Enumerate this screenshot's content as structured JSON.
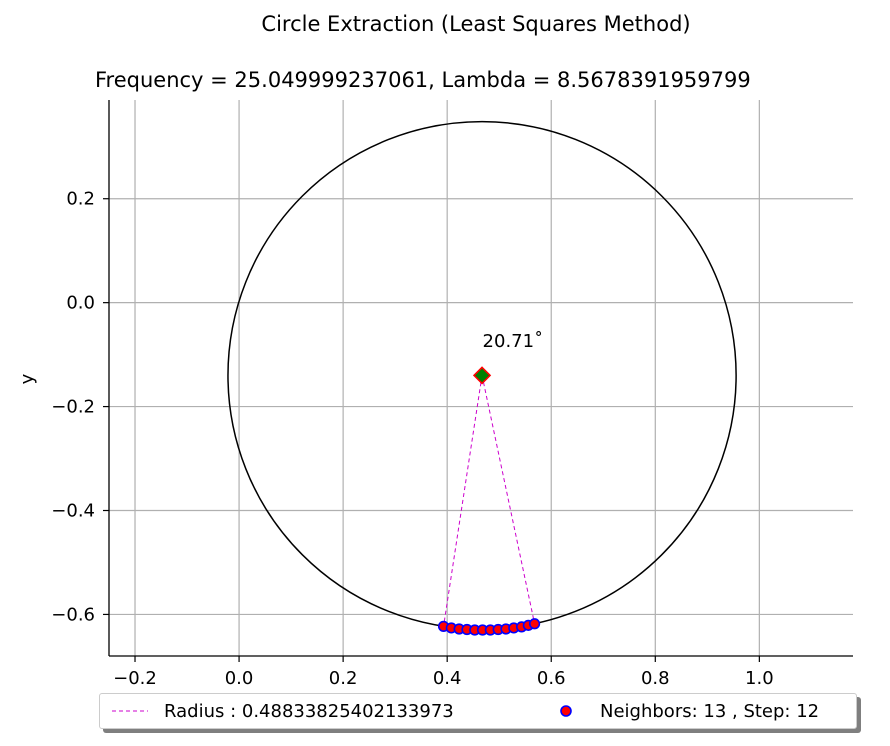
{
  "figure": {
    "suptitle": "Circle Extraction (Least Squares Method)",
    "axes_title": "Frequency = 25.049999237061, Lambda = 8.5678391959799"
  },
  "chart_data": {
    "type": "scatter",
    "title": "Circle Extraction (Least Squares Method)",
    "subtitle": "Frequency = 25.049999237061, Lambda = 8.5678391959799",
    "xlabel": "",
    "ylabel": "y",
    "xlim": [
      -0.25,
      1.18
    ],
    "ylim": [
      -0.68,
      0.39
    ],
    "xticks": [
      -0.2,
      0.0,
      0.2,
      0.4,
      0.6,
      0.8,
      1.0
    ],
    "xtick_labels": [
      "−0.2",
      "0.0",
      "0.2",
      "0.4",
      "0.6",
      "0.8",
      "1.0"
    ],
    "yticks": [
      0.2,
      0.0,
      -0.2,
      -0.4,
      -0.6
    ],
    "ytick_labels": [
      "0.2",
      "0.0",
      "−0.2",
      "−0.4",
      "−0.6"
    ],
    "grid": true,
    "legend_position": "below-center",
    "circle": {
      "center": [
        0.467,
        -0.14
      ],
      "radius": 0.48833825402133973,
      "color": "#000000"
    },
    "center_marker": {
      "x": 0.467,
      "y": -0.14,
      "fill": "#008000",
      "edge": "#ff0000"
    },
    "radius_lines": [
      {
        "from": [
          0.467,
          -0.14
        ],
        "to": [
          0.393,
          -0.623
        ]
      },
      {
        "from": [
          0.467,
          -0.14
        ],
        "to": [
          0.568,
          -0.618
        ]
      }
    ],
    "angle_label": {
      "text": "20.71$^\\circ$",
      "display": "20.71˚",
      "x": 0.468,
      "y": -0.085
    },
    "series": [
      {
        "name": "Neighbors: 13 , Step: 12",
        "x": [
          0.393,
          0.408,
          0.423,
          0.438,
          0.453,
          0.468,
          0.483,
          0.498,
          0.513,
          0.528,
          0.543,
          0.556,
          0.568
        ],
        "y": [
          -0.623,
          -0.626,
          -0.628,
          -0.629,
          -0.63,
          -0.63,
          -0.63,
          -0.629,
          -0.628,
          -0.626,
          -0.624,
          -0.621,
          -0.618
        ],
        "marker_fill": "#ff0000",
        "marker_edge": "#0000ff"
      }
    ],
    "legend": [
      {
        "label": "Radius : 0.48833825402133973",
        "style": "dashed-line",
        "color": "#cc00cc"
      },
      {
        "label": "Neighbors: 13 , Step: 12",
        "style": "marker",
        "fill": "#ff0000",
        "edge": "#0000ff"
      }
    ]
  }
}
